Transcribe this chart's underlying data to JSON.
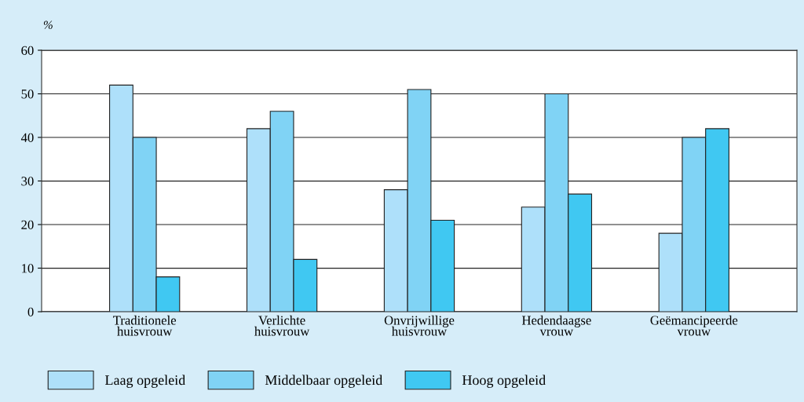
{
  "chart_data": {
    "type": "bar",
    "ylabel": "%",
    "categories": [
      "Traditionele\nhuisvrouw",
      "Verlichte\nhuisvrouw",
      "Onvrijwillige\nhuisvrouw",
      "Hedendaagse\nvrouw",
      "Geëmancipeerde\nvrouw"
    ],
    "series": [
      {
        "name": "Laag opgeleid",
        "color": "#aee0fa",
        "values": [
          52,
          42,
          28,
          24,
          18
        ]
      },
      {
        "name": "Middelbaar opgeleid",
        "color": "#80d3f5",
        "values": [
          40,
          46,
          51,
          50,
          40
        ]
      },
      {
        "name": "Hoog opgeleid",
        "color": "#40c8f2",
        "values": [
          8,
          12,
          21,
          27,
          42
        ]
      }
    ],
    "ylim": [
      0,
      60
    ],
    "yticks": [
      0,
      10,
      20,
      30,
      40,
      50,
      60
    ],
    "grid": "y",
    "legend": "bottom"
  }
}
